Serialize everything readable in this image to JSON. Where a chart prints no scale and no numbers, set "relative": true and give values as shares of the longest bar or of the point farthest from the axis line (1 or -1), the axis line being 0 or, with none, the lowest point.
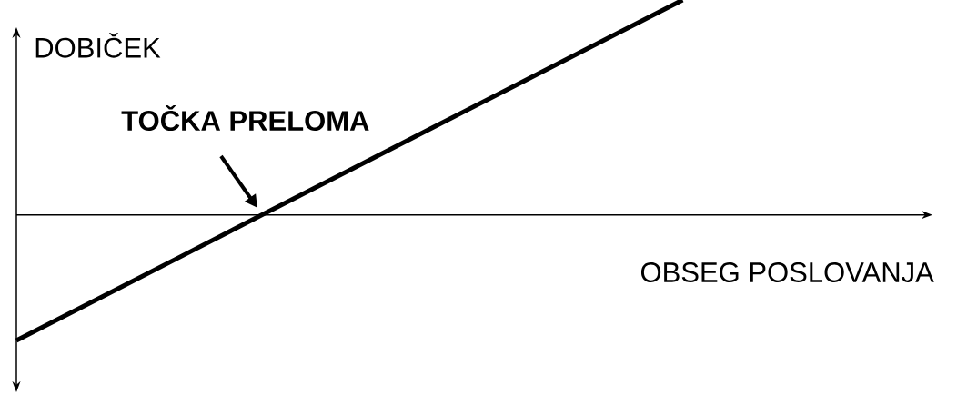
{
  "chart_data": {
    "type": "line",
    "relative": true,
    "xlabel": "OBSEG POSLOVANJA",
    "ylabel": "DOBIČEK",
    "annotations": [
      "TOČKA PRELOMA"
    ],
    "marker": "none",
    "categories": [
      null,
      null,
      null,
      null,
      null,
      null,
      null,
      null,
      null,
      null,
      null,
      null
    ],
    "series": [
      {
        "color": "#000000",
        "values": [
          -0.585,
          -0.387,
          -0.189,
          0.01,
          0.208,
          0.406,
          0.604,
          0.802,
          1.0,
          null,
          null,
          null
        ]
      }
    ]
  }
}
